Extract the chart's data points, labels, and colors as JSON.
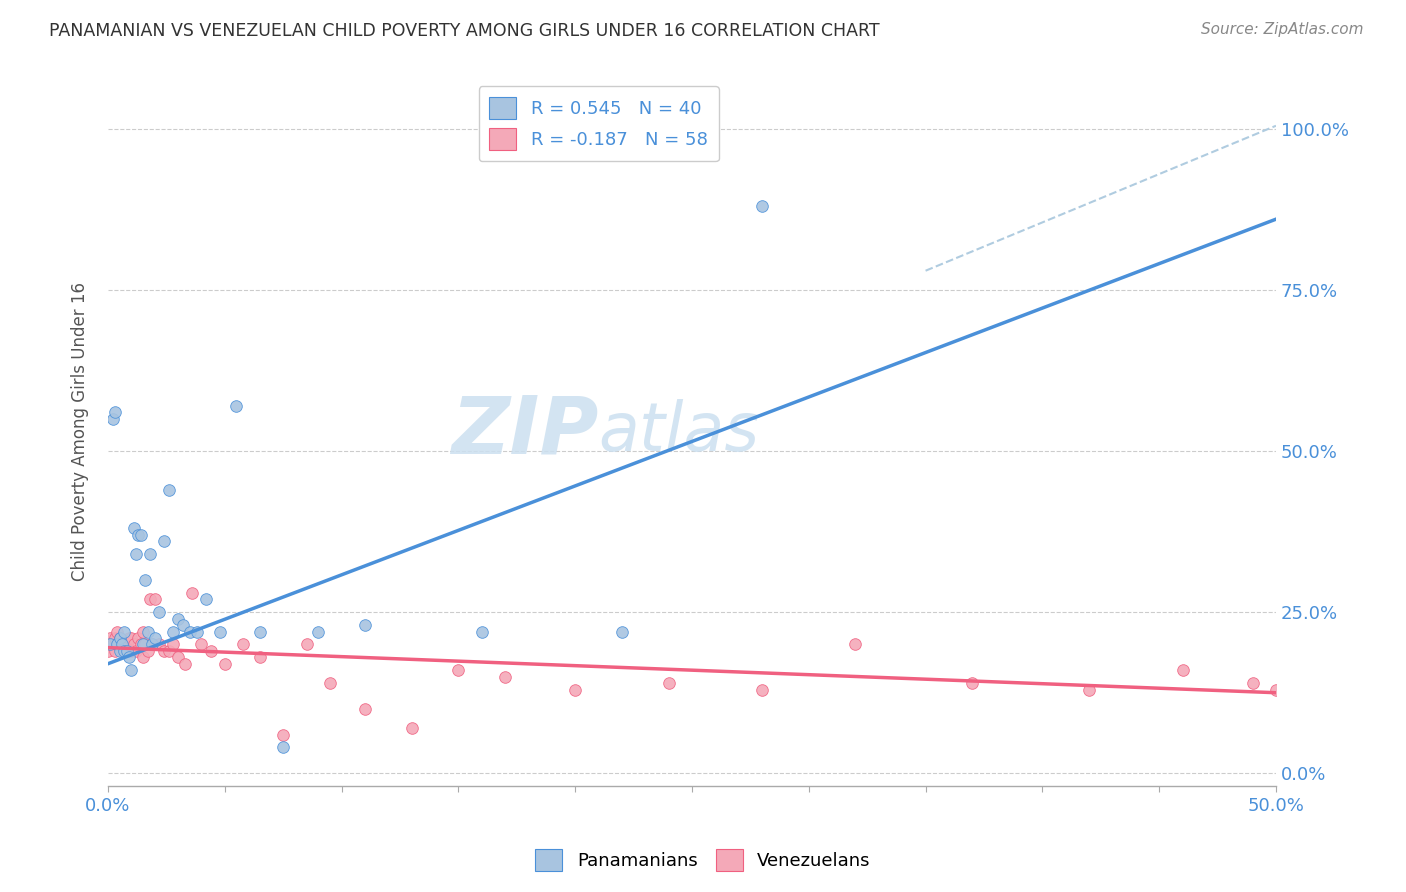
{
  "title": "PANAMANIAN VS VENEZUELAN CHILD POVERTY AMONG GIRLS UNDER 16 CORRELATION CHART",
  "source": "Source: ZipAtlas.com",
  "ylabel": "Child Poverty Among Girls Under 16",
  "ytick_labels": [
    "0.0%",
    "25.0%",
    "50.0%",
    "75.0%",
    "100.0%"
  ],
  "ytick_values": [
    0.0,
    0.25,
    0.5,
    0.75,
    1.0
  ],
  "xlim": [
    0.0,
    0.5
  ],
  "ylim": [
    -0.02,
    1.08
  ],
  "legend_r1": "R = 0.545   N = 40",
  "legend_r2": "R = -0.187   N = 58",
  "pan_color": "#a8c4e0",
  "ven_color": "#f4a9b8",
  "pan_line_color": "#4a90d9",
  "ven_line_color": "#f06080",
  "pan_scatter_x": [
    0.001,
    0.002,
    0.003,
    0.004,
    0.005,
    0.005,
    0.006,
    0.007,
    0.007,
    0.008,
    0.009,
    0.01,
    0.011,
    0.012,
    0.013,
    0.014,
    0.015,
    0.016,
    0.017,
    0.018,
    0.019,
    0.02,
    0.022,
    0.024,
    0.026,
    0.028,
    0.03,
    0.032,
    0.035,
    0.038,
    0.042,
    0.048,
    0.055,
    0.065,
    0.075,
    0.09,
    0.11,
    0.16,
    0.22,
    0.28
  ],
  "pan_scatter_y": [
    0.2,
    0.55,
    0.56,
    0.2,
    0.21,
    0.19,
    0.2,
    0.19,
    0.22,
    0.19,
    0.18,
    0.16,
    0.38,
    0.34,
    0.37,
    0.37,
    0.2,
    0.3,
    0.22,
    0.34,
    0.2,
    0.21,
    0.25,
    0.36,
    0.44,
    0.22,
    0.24,
    0.23,
    0.22,
    0.22,
    0.27,
    0.22,
    0.57,
    0.22,
    0.04,
    0.22,
    0.23,
    0.22,
    0.22,
    0.88
  ],
  "ven_scatter_x": [
    0.0,
    0.001,
    0.001,
    0.002,
    0.003,
    0.003,
    0.004,
    0.004,
    0.005,
    0.005,
    0.006,
    0.006,
    0.007,
    0.007,
    0.008,
    0.008,
    0.009,
    0.01,
    0.01,
    0.011,
    0.012,
    0.013,
    0.014,
    0.015,
    0.015,
    0.016,
    0.017,
    0.018,
    0.019,
    0.02,
    0.022,
    0.024,
    0.026,
    0.028,
    0.03,
    0.033,
    0.036,
    0.04,
    0.044,
    0.05,
    0.058,
    0.065,
    0.075,
    0.085,
    0.095,
    0.11,
    0.13,
    0.15,
    0.17,
    0.2,
    0.24,
    0.28,
    0.32,
    0.37,
    0.42,
    0.46,
    0.49,
    0.5
  ],
  "ven_scatter_y": [
    0.19,
    0.21,
    0.2,
    0.2,
    0.19,
    0.21,
    0.22,
    0.2,
    0.2,
    0.21,
    0.2,
    0.19,
    0.2,
    0.19,
    0.2,
    0.2,
    0.21,
    0.19,
    0.21,
    0.2,
    0.19,
    0.21,
    0.2,
    0.22,
    0.18,
    0.2,
    0.19,
    0.27,
    0.2,
    0.27,
    0.2,
    0.19,
    0.19,
    0.2,
    0.18,
    0.17,
    0.28,
    0.2,
    0.19,
    0.17,
    0.2,
    0.18,
    0.06,
    0.2,
    0.14,
    0.1,
    0.07,
    0.16,
    0.15,
    0.13,
    0.14,
    0.13,
    0.2,
    0.14,
    0.13,
    0.16,
    0.14,
    0.13
  ],
  "pan_line_x": [
    0.0,
    0.5
  ],
  "pan_line_y": [
    0.17,
    0.86
  ],
  "ven_line_x": [
    0.0,
    0.5
  ],
  "ven_line_y": [
    0.195,
    0.125
  ],
  "ref_line_x": [
    0.35,
    0.5
  ],
  "ref_line_y": [
    0.78,
    1.005
  ],
  "watermark_zip": "ZIP",
  "watermark_atlas": "atlas",
  "background_color": "#ffffff",
  "grid_color": "#cccccc"
}
